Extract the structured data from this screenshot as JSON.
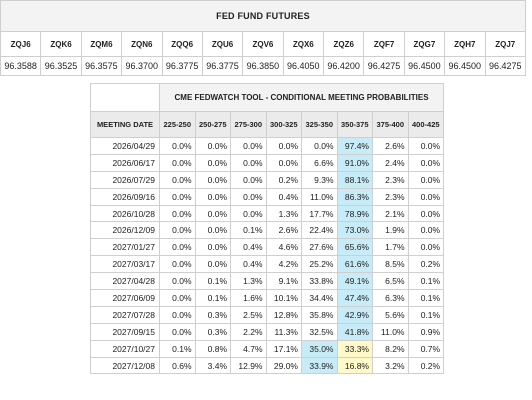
{
  "futures": {
    "title": "FED FUND FUTURES",
    "contracts": [
      "ZQJ6",
      "ZQK6",
      "ZQM6",
      "ZQN6",
      "ZQQ6",
      "ZQU6",
      "ZQV6",
      "ZQX6",
      "ZQZ6",
      "ZQF7",
      "ZQG7",
      "ZQH7",
      "ZQJ7"
    ],
    "prices": [
      "96.3588",
      "96.3525",
      "96.3575",
      "96.3700",
      "96.3775",
      "96.3775",
      "96.3850",
      "96.4050",
      "96.4200",
      "96.4275",
      "96.4500",
      "96.4500",
      "96.4275"
    ]
  },
  "fedwatch": {
    "title": "CME FEDWATCH TOOL - CONDITIONAL MEETING PROBABILITIES",
    "date_header": "MEETING DATE",
    "ranges": [
      "225-250",
      "250-275",
      "275-300",
      "300-325",
      "325-350",
      "350-375",
      "375-400",
      "400-425"
    ],
    "rows": [
      {
        "date": "2026/04/29",
        "values": [
          "0.0%",
          "0.0%",
          "0.0%",
          "0.0%",
          "0.0%",
          "97.4%",
          "2.6%",
          "0.0%"
        ]
      },
      {
        "date": "2026/06/17",
        "values": [
          "0.0%",
          "0.0%",
          "0.0%",
          "0.0%",
          "6.6%",
          "91.0%",
          "2.4%",
          "0.0%"
        ]
      },
      {
        "date": "2026/07/29",
        "values": [
          "0.0%",
          "0.0%",
          "0.0%",
          "0.2%",
          "9.3%",
          "88.1%",
          "2.3%",
          "0.0%"
        ]
      },
      {
        "date": "2026/09/16",
        "values": [
          "0.0%",
          "0.0%",
          "0.0%",
          "0.4%",
          "11.0%",
          "86.3%",
          "2.3%",
          "0.0%"
        ]
      },
      {
        "date": "2026/10/28",
        "values": [
          "0.0%",
          "0.0%",
          "0.0%",
          "1.3%",
          "17.7%",
          "78.9%",
          "2.1%",
          "0.0%"
        ]
      },
      {
        "date": "2026/12/09",
        "values": [
          "0.0%",
          "0.0%",
          "0.1%",
          "2.6%",
          "22.4%",
          "73.0%",
          "1.9%",
          "0.0%"
        ]
      },
      {
        "date": "2027/01/27",
        "values": [
          "0.0%",
          "0.0%",
          "0.4%",
          "4.6%",
          "27.6%",
          "65.6%",
          "1.7%",
          "0.0%"
        ]
      },
      {
        "date": "2027/03/17",
        "values": [
          "0.0%",
          "0.0%",
          "0.4%",
          "4.2%",
          "25.2%",
          "61.6%",
          "8.5%",
          "0.2%"
        ]
      },
      {
        "date": "2027/04/28",
        "values": [
          "0.0%",
          "0.1%",
          "1.3%",
          "9.1%",
          "33.8%",
          "49.1%",
          "6.5%",
          "0.1%"
        ]
      },
      {
        "date": "2027/06/09",
        "values": [
          "0.0%",
          "0.1%",
          "1.6%",
          "10.1%",
          "34.4%",
          "47.4%",
          "6.3%",
          "0.1%"
        ]
      },
      {
        "date": "2027/07/28",
        "values": [
          "0.0%",
          "0.3%",
          "2.5%",
          "12.8%",
          "35.8%",
          "42.9%",
          "5.6%",
          "0.1%"
        ]
      },
      {
        "date": "2027/09/15",
        "values": [
          "0.0%",
          "0.3%",
          "2.2%",
          "11.3%",
          "32.5%",
          "41.8%",
          "11.0%",
          "0.9%"
        ]
      },
      {
        "date": "2027/10/27",
        "values": [
          "0.1%",
          "0.8%",
          "4.7%",
          "17.1%",
          "35.0%",
          "33.3%",
          "8.2%",
          "0.7%"
        ]
      },
      {
        "date": "2027/12/08",
        "values": [
          "0.6%",
          "3.4%",
          "12.9%",
          "29.0%",
          "33.9%",
          "16.8%",
          "3.2%",
          "0.2%"
        ]
      }
    ],
    "highlights": [
      {
        "row": 0,
        "col": 5,
        "color": "blue"
      },
      {
        "row": 1,
        "col": 5,
        "color": "blue"
      },
      {
        "row": 2,
        "col": 5,
        "color": "blue"
      },
      {
        "row": 3,
        "col": 5,
        "color": "blue"
      },
      {
        "row": 4,
        "col": 5,
        "color": "blue"
      },
      {
        "row": 5,
        "col": 5,
        "color": "blue"
      },
      {
        "row": 6,
        "col": 5,
        "color": "blue"
      },
      {
        "row": 7,
        "col": 5,
        "color": "blue"
      },
      {
        "row": 8,
        "col": 5,
        "color": "blue"
      },
      {
        "row": 9,
        "col": 5,
        "color": "blue"
      },
      {
        "row": 10,
        "col": 5,
        "color": "blue"
      },
      {
        "row": 11,
        "col": 5,
        "color": "blue"
      },
      {
        "row": 12,
        "col": 4,
        "color": "blue"
      },
      {
        "row": 12,
        "col": 5,
        "color": "yellow"
      },
      {
        "row": 13,
        "col": 4,
        "color": "blue"
      },
      {
        "row": 13,
        "col": 5,
        "color": "yellow"
      }
    ],
    "colors": {
      "blue": "#c8ecf7",
      "yellow": "#fff8c8",
      "header_bg": "#ebebeb",
      "title_bg": "#f3f3f3",
      "border": "#cfcfcf"
    }
  }
}
